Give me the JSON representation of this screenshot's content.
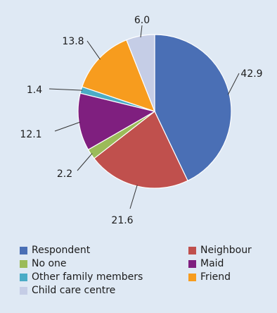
{
  "chart_data": {
    "type": "pie",
    "title": "",
    "slices": [
      {
        "label": "Respondent",
        "value": 42.9,
        "value_label": "42.9",
        "color": "#4a6fb5"
      },
      {
        "label": "Neighbour",
        "value": 21.6,
        "value_label": "21.6",
        "color": "#c0504d"
      },
      {
        "label": "No one",
        "value": 2.2,
        "value_label": "2.2",
        "color": "#9bbb59"
      },
      {
        "label": "Maid",
        "value": 12.1,
        "value_label": "12.1",
        "color": "#7f1f7f"
      },
      {
        "label": "Other family members",
        "value": 1.4,
        "value_label": "1.4",
        "color": "#4bacc6"
      },
      {
        "label": "Friend",
        "value": 13.8,
        "value_label": "13.8",
        "color": "#f79c1e"
      },
      {
        "label": "Child care centre",
        "value": 6.0,
        "value_label": "6.0",
        "color": "#c5cde6"
      }
    ],
    "legend_position": "bottom",
    "legend_order": [
      "Respondent",
      "Neighbour",
      "No one",
      "Maid",
      "Other family members",
      "Friend",
      "Child care centre"
    ]
  }
}
